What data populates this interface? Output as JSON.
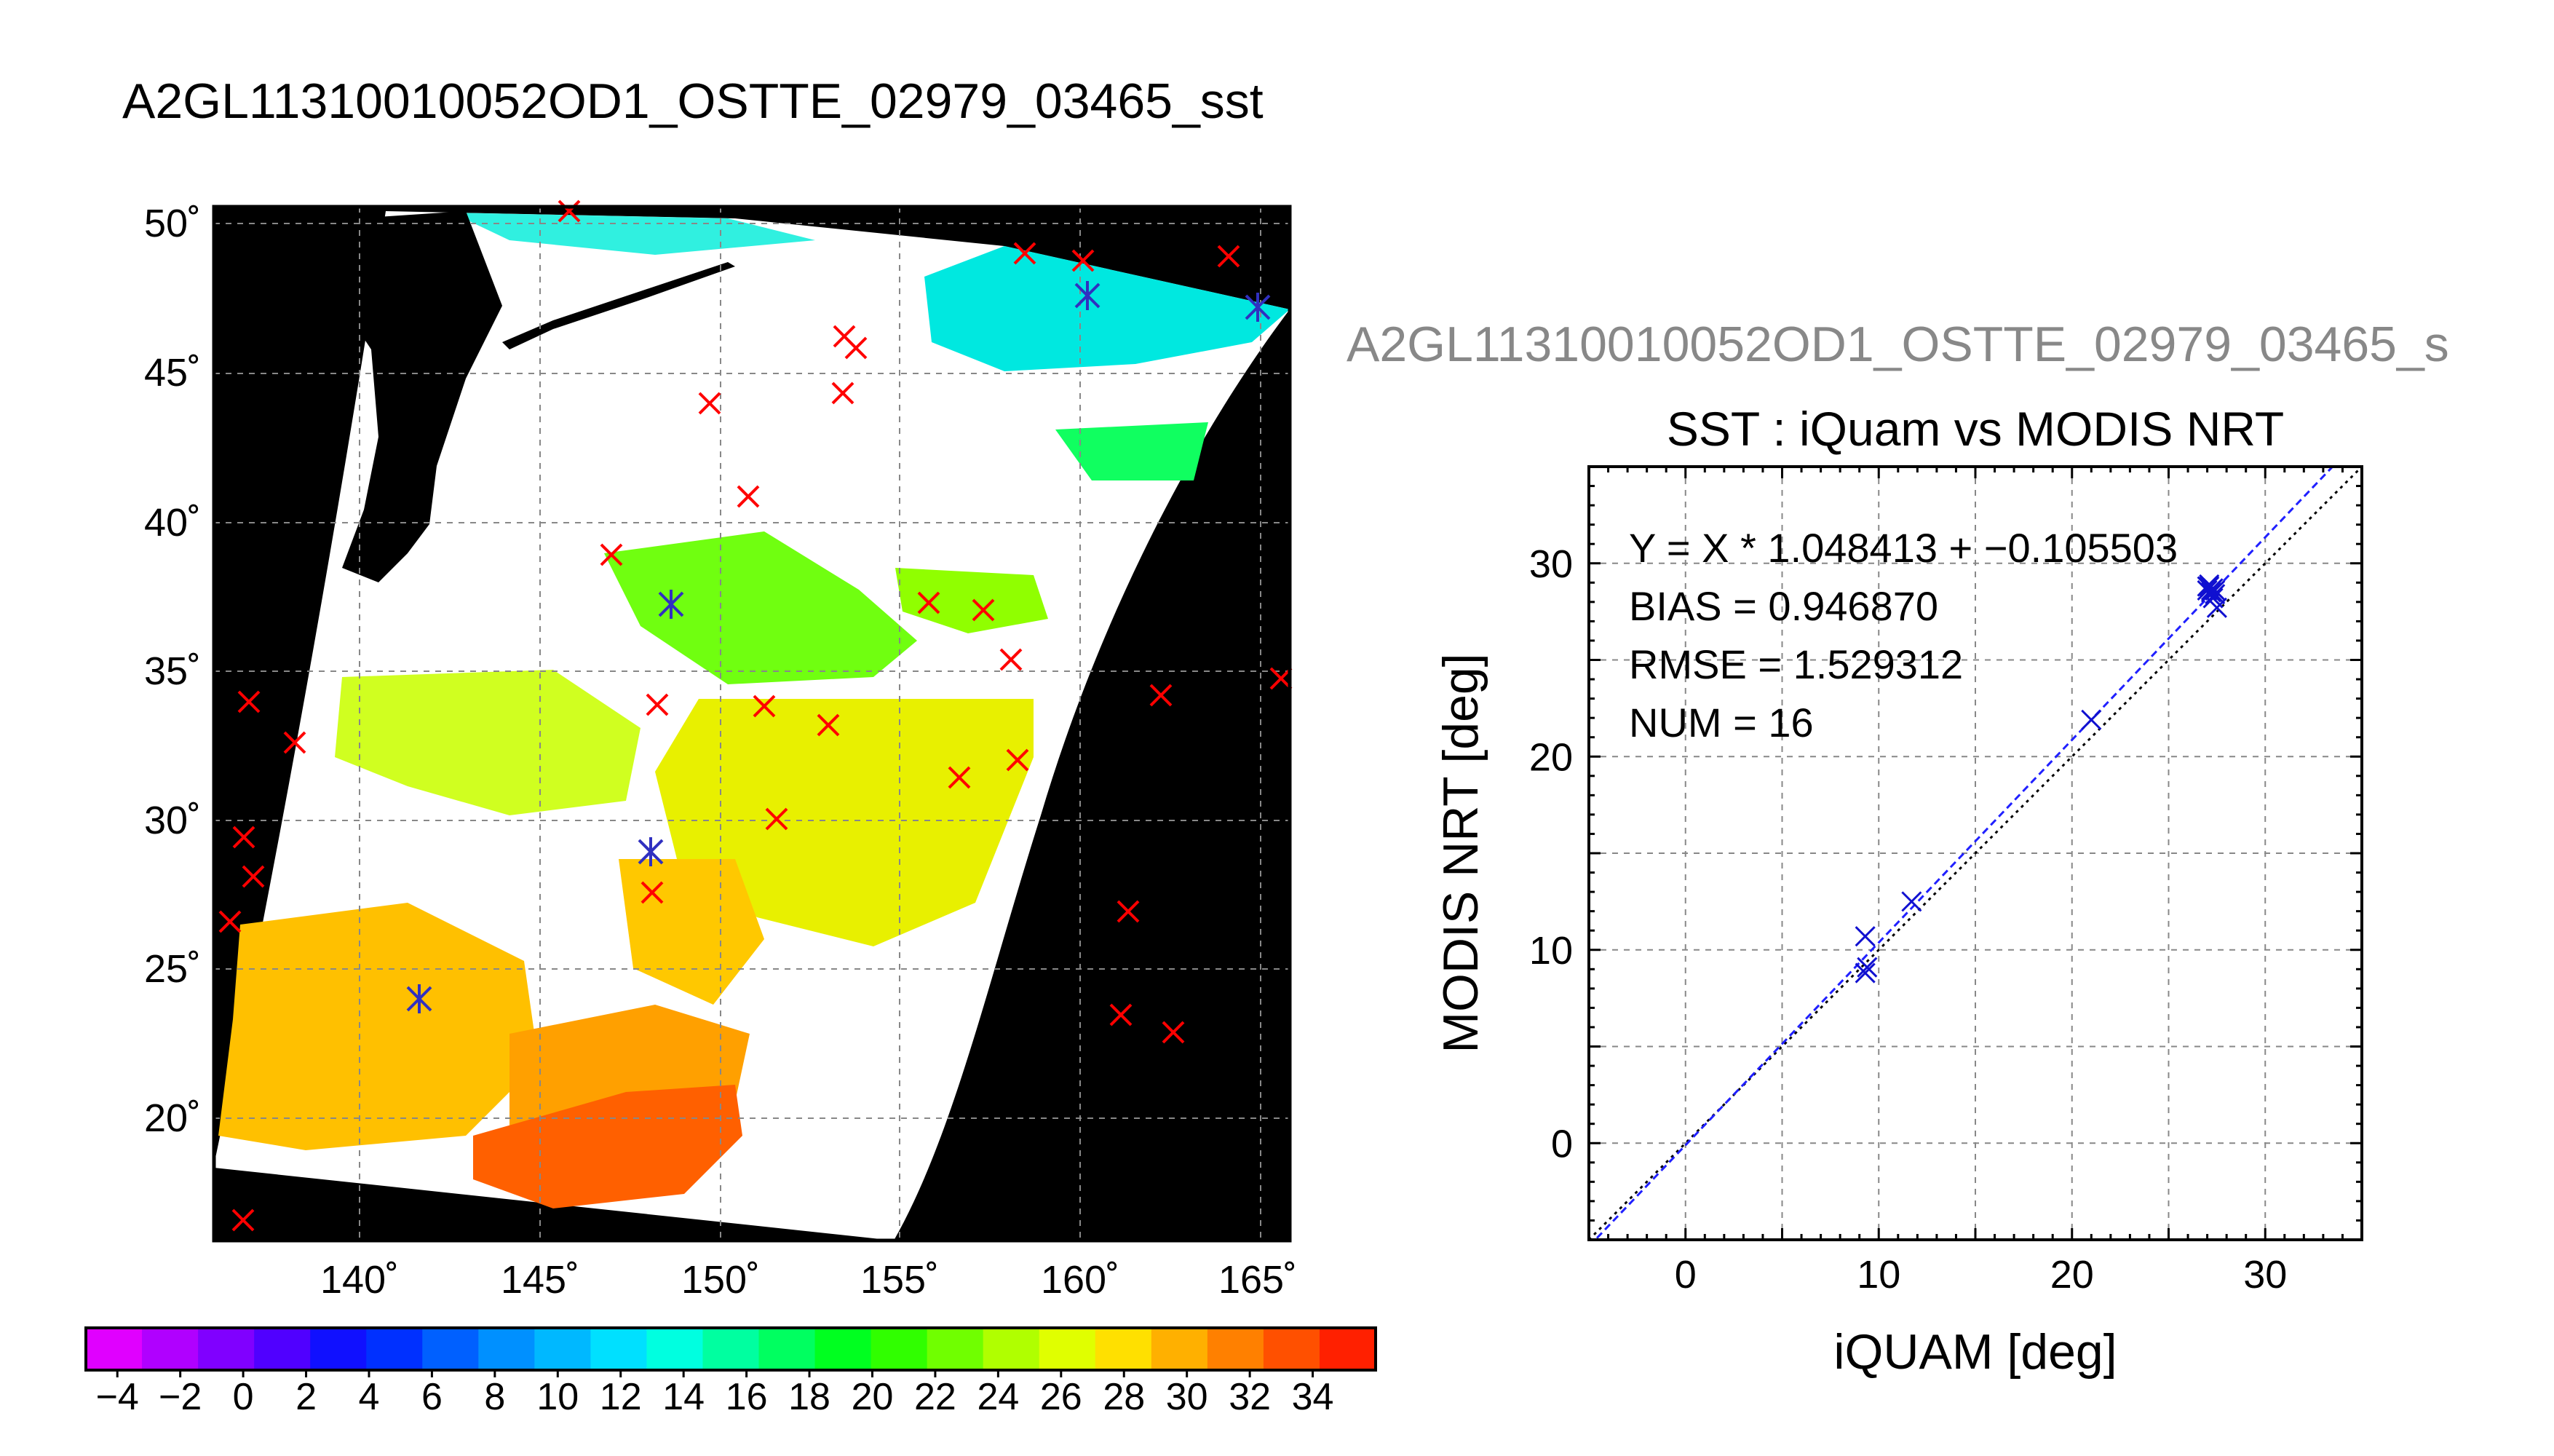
{
  "main_title": "A2GL11310010052OD1_OSTTE_02979_03465_sst",
  "secondary_title": "A2GL11310010052OD1_OSTTE_02979_03465_s",
  "colors": {
    "land": "#000000",
    "cloud": "#ffffff",
    "match_marker": "#ff0000",
    "match_star": "#3030c0",
    "scatter_marker": "#1010d0",
    "fit_line": "#2020ff",
    "one_to_one_line": "#000000",
    "grid": "#888888"
  },
  "map": {
    "lat_ticks": [
      "50˚",
      "45˚",
      "40˚",
      "35˚",
      "30˚",
      "25˚",
      "20˚"
    ],
    "lon_ticks": [
      "140˚",
      "145˚",
      "150˚",
      "155˚",
      "160˚",
      "165˚"
    ]
  },
  "colorbar": {
    "labels": [
      "−4",
      "−2",
      "0",
      "2",
      "4",
      "6",
      "8",
      "10",
      "12",
      "14",
      "16",
      "18",
      "20",
      "22",
      "24",
      "26",
      "28",
      "30",
      "32",
      "34"
    ],
    "colors": [
      "#e000ff",
      "#b000ff",
      "#8000ff",
      "#5000ff",
      "#1010ff",
      "#0030ff",
      "#0060ff",
      "#0090ff",
      "#00b8ff",
      "#00e0ff",
      "#00ffe0",
      "#00ffa0",
      "#00ff60",
      "#00ff20",
      "#30ff00",
      "#70ff00",
      "#b0ff00",
      "#e0ff00",
      "#ffe000",
      "#ffb000",
      "#ff8000",
      "#ff5000",
      "#ff2000"
    ]
  },
  "chart_data": {
    "type": "scatter",
    "title": "SST : iQuam vs MODIS NRT",
    "xlabel": "iQUAM [deg]",
    "ylabel": "MODIS NRT [deg]",
    "xlim": [
      -5,
      35
    ],
    "ylim": [
      -5,
      35
    ],
    "x_ticks": [
      0,
      10,
      20,
      30
    ],
    "y_ticks": [
      0,
      10,
      20,
      30
    ],
    "grid": true,
    "annotations": [
      "Y = X * 1.048413 + −0.105503",
      "BIAS = 0.946870",
      "RMSE = 1.529312",
      "NUM = 16"
    ],
    "fit": {
      "slope": 1.048413,
      "intercept": -0.105503
    },
    "points": [
      {
        "x": 9.3,
        "y": 10.7
      },
      {
        "x": 9.3,
        "y": 8.8
      },
      {
        "x": 9.4,
        "y": 9.1
      },
      {
        "x": 11.7,
        "y": 12.5
      },
      {
        "x": 21.0,
        "y": 21.9
      },
      {
        "x": 27.0,
        "y": 28.6
      },
      {
        "x": 27.1,
        "y": 28.8
      },
      {
        "x": 27.2,
        "y": 28.5
      },
      {
        "x": 27.3,
        "y": 28.7
      },
      {
        "x": 27.4,
        "y": 28.4
      },
      {
        "x": 27.1,
        "y": 28.9
      },
      {
        "x": 27.5,
        "y": 27.7
      },
      {
        "x": 27.3,
        "y": 28.2
      },
      {
        "x": 27.2,
        "y": 28.6
      },
      {
        "x": 27.0,
        "y": 28.8
      },
      {
        "x": 27.4,
        "y": 28.6
      }
    ]
  }
}
